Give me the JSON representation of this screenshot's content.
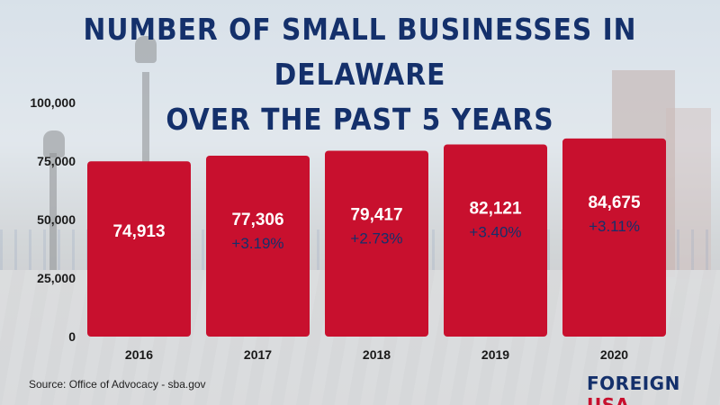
{
  "title": {
    "line1": "NUMBER OF SMALL BUSINESSES IN DELAWARE",
    "line2": "OVER THE PAST 5 YEARS"
  },
  "source": "Source: Office of Advocacy - sba.gov",
  "brand": {
    "part1": "FOREIGN",
    "part2": "USA"
  },
  "colors": {
    "bar": "#c8102e",
    "title": "#14306b",
    "value_text": "#ffffff",
    "change_text": "#14306b"
  },
  "chart_data": {
    "type": "bar",
    "categories": [
      "2016",
      "2017",
      "2018",
      "2019",
      "2020"
    ],
    "values": [
      74913,
      77306,
      79417,
      82121,
      84675
    ],
    "value_labels": [
      "74,913",
      "77,306",
      "79,417",
      "82,121",
      "84,675"
    ],
    "change_labels": [
      "",
      "+3.19%",
      "+2.73%",
      "+3.40%",
      "+3.11%"
    ],
    "y_ticks": [
      0,
      25000,
      50000,
      75000,
      100000
    ],
    "y_tick_labels": [
      "0",
      "25,000",
      "50,000",
      "75,000",
      "100,000"
    ],
    "ylim": [
      0,
      100000
    ],
    "title": "NUMBER OF SMALL BUSINESSES IN DELAWARE OVER THE PAST 5 YEARS",
    "xlabel": "",
    "ylabel": "",
    "grid": false,
    "legend": "none"
  }
}
